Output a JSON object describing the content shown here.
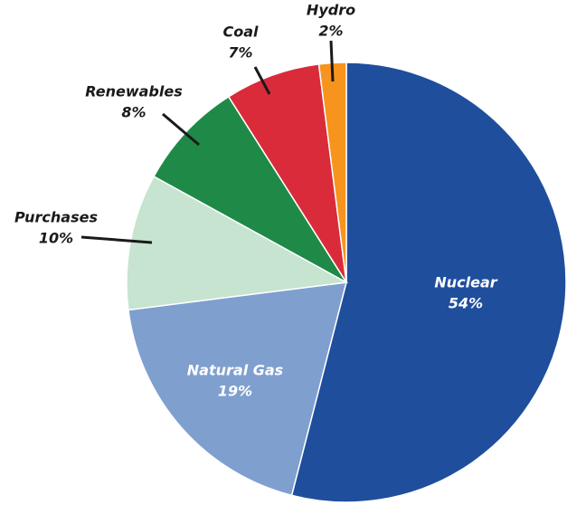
{
  "chart_data": {
    "type": "pie",
    "categories": [
      "Nuclear",
      "Natural Gas",
      "Purchases",
      "Renewables",
      "Coal",
      "Hydro"
    ],
    "values": [
      54,
      19,
      10,
      8,
      7,
      2
    ],
    "value_labels": [
      "54%",
      "19%",
      "10%",
      "8%",
      "7%",
      "2%"
    ],
    "colors": [
      "#1f4e9c",
      "#7f9fcf",
      "#c6e4d0",
      "#1f8a47",
      "#d92b3a",
      "#f7941d"
    ]
  }
}
